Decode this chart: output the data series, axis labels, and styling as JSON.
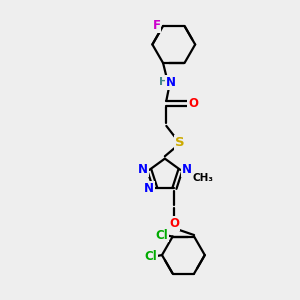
{
  "bg_color": "#eeeeee",
  "bond_color": "#000000",
  "atom_colors": {
    "N": "#0000ff",
    "O": "#ff0000",
    "S": "#ccaa00",
    "Cl": "#00aa00",
    "F": "#cc00cc",
    "C": "#000000",
    "H": "#448888"
  },
  "line_width": 1.6,
  "font_size": 8.5,
  "title": ""
}
